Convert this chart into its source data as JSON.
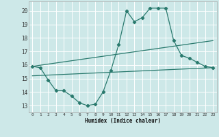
{
  "xlabel": "Humidex (Indice chaleur)",
  "bg_color": "#cde8e8",
  "grid_color": "#ffffff",
  "line_color": "#2a7a6e",
  "xlim": [
    -0.5,
    23.5
  ],
  "ylim": [
    12.5,
    20.7
  ],
  "yticks": [
    13,
    14,
    15,
    16,
    17,
    18,
    19,
    20
  ],
  "xticks": [
    0,
    1,
    2,
    3,
    4,
    5,
    6,
    7,
    8,
    9,
    10,
    11,
    12,
    13,
    14,
    15,
    16,
    17,
    18,
    19,
    20,
    21,
    22,
    23
  ],
  "line1_x": [
    0,
    1,
    2,
    3,
    4,
    5,
    6,
    7,
    8,
    9,
    10,
    11,
    12,
    13,
    14,
    15,
    16,
    17,
    18,
    19,
    20,
    21,
    22,
    23
  ],
  "line1_y": [
    15.9,
    15.8,
    14.9,
    14.1,
    14.1,
    13.7,
    13.2,
    13.0,
    13.1,
    14.0,
    15.6,
    17.5,
    20.0,
    19.2,
    19.5,
    20.2,
    20.2,
    20.2,
    17.8,
    16.7,
    16.5,
    16.2,
    15.9,
    15.8
  ],
  "line2_x": [
    0,
    23
  ],
  "line2_y": [
    15.9,
    17.8
  ],
  "line3_x": [
    0,
    23
  ],
  "line3_y": [
    15.2,
    15.8
  ]
}
